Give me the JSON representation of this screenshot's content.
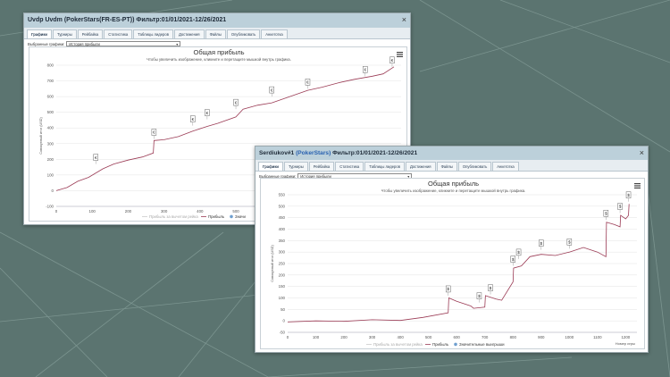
{
  "window1": {
    "title_prefix": "Uvdp Uvdm (PokerStars(FR-ES-PT)) Фильтр:01/01/2021-12/26/2021",
    "close_glyph": "×",
    "tabs": [
      "Графики",
      "Турниры",
      "Рейбайка",
      "Статистика",
      "Таблицы лидеров",
      "Достижения",
      "Файлы",
      "Опубликовать",
      "Анкетотка"
    ],
    "select_label": "Выбранные графики:",
    "select_value": "История прибыли",
    "chart_title": "Общая прибыль",
    "chart_subtitle": "Чтобы увеличить изображение, кликните и перетащите мышкой внутрь графика.",
    "ylabel": "Совокупный итог (USD)",
    "legend": [
      "Прибыль за вычетом рейка",
      "Прибыль",
      "Значи"
    ]
  },
  "window2": {
    "title_name": "Serdiukov#1",
    "title_site": "(PokerStars)",
    "title_filter": "Фильтр:01/01/2021-12/26/2021",
    "close_glyph": "×",
    "tabs": [
      "Графики",
      "Турниры",
      "Рейбайка",
      "Статистика",
      "Таблицы лидеров",
      "Достижения",
      "Файлы",
      "Опубликовать",
      "Анкетотка"
    ],
    "select_label": "Выбранные графики:",
    "select_value": "История прибыли",
    "chart_title": "Общая прибыль",
    "chart_subtitle": "Чтобы увеличить изображение, кликните и перетащите мышкой внутрь графика.",
    "ylabel": "Совокупный итог (USD)",
    "xlabel": "Номер игры",
    "legend": [
      "Прибыль за вычетом рейка",
      "Прибыль",
      "Значительные выигрыши"
    ]
  },
  "colors": {
    "line": "#9b3b55",
    "marker": "#6f9fcf",
    "titlebar": "#bcd0da",
    "background": "#5b7470"
  },
  "icons": {
    "menu": "hamburger-menu-icon",
    "flag1": "€",
    "flag2": "$"
  },
  "chart_data": [
    {
      "type": "line",
      "title": "Общая прибыль",
      "subtitle": "Чтобы увеличить изображение, кликните и перетащите мышкой внутрь графика.",
      "ylabel": "Совокупный итог (USD)",
      "xlabel": "",
      "xticks": [
        0,
        100,
        200,
        300,
        400,
        500
      ],
      "yticks": [
        -100,
        0,
        100,
        200,
        300,
        400,
        500,
        600,
        700,
        800
      ],
      "xlim": [
        0,
        960
      ],
      "ylim": [
        -100,
        800
      ],
      "series": [
        {
          "name": "Прибыль",
          "x": [
            0,
            30,
            60,
            90,
            130,
            160,
            200,
            240,
            270,
            272,
            300,
            340,
            380,
            420,
            450,
            500,
            520,
            560,
            600,
            650,
            700,
            740,
            790,
            830,
            880,
            910,
            940
          ],
          "y": [
            0,
            20,
            60,
            85,
            140,
            170,
            195,
            215,
            240,
            320,
            325,
            345,
            380,
            410,
            430,
            470,
            520,
            545,
            560,
            600,
            640,
            660,
            690,
            710,
            730,
            745,
            790
          ]
        },
        {
          "name": "Прибыль за вычетом рейка",
          "x": [],
          "y": []
        }
      ],
      "markers": {
        "name": "Значительные выигрыши",
        "x": [
          110,
          272,
          380,
          420,
          500,
          600,
          700,
          860,
          935
        ],
        "y": [
          170,
          330,
          415,
          455,
          520,
          600,
          650,
          730,
          790
        ]
      },
      "legend": [
        "Прибыль за вычетом рейка",
        "Прибыль",
        "Значи"
      ]
    },
    {
      "type": "line",
      "title": "Общая прибыль",
      "subtitle": "Чтобы увеличить изображение, кликните и перетащите мышкой внутрь графика.",
      "ylabel": "Совокупный итог (USD)",
      "xlabel": "Номер игры",
      "xticks": [
        0,
        100,
        200,
        300,
        400,
        500,
        600,
        700,
        800,
        900,
        1000,
        1100,
        1200
      ],
      "yticks": [
        -50,
        0,
        50,
        100,
        150,
        200,
        250,
        300,
        350,
        400,
        450,
        500,
        550
      ],
      "xlim": [
        0,
        1240
      ],
      "ylim": [
        -50,
        550
      ],
      "series": [
        {
          "name": "Прибыль",
          "x": [
            0,
            100,
            200,
            300,
            400,
            480,
            570,
            572,
            600,
            650,
            660,
            700,
            702,
            740,
            760,
            800,
            802,
            830,
            860,
            900,
            950,
            1000,
            1050,
            1100,
            1130,
            1132,
            1160,
            1180,
            1182,
            1200,
            1210,
            1212
          ],
          "y": [
            -5,
            0,
            -2,
            5,
            2,
            15,
            35,
            100,
            85,
            65,
            55,
            60,
            110,
            95,
            90,
            170,
            230,
            240,
            280,
            290,
            285,
            300,
            320,
            300,
            280,
            430,
            420,
            410,
            460,
            445,
            460,
            510
          ]
        },
        {
          "name": "Прибыль за вычетом рейка",
          "x": [],
          "y": []
        }
      ],
      "markers": {
        "name": "Значительные выигрыши",
        "x": [
          570,
          680,
          720,
          800,
          820,
          900,
          1000,
          1130,
          1180,
          1210
        ],
        "y": [
          110,
          80,
          115,
          240,
          270,
          310,
          315,
          440,
          470,
          520
        ]
      },
      "legend": [
        "Прибыль за вычетом рейка",
        "Прибыль",
        "Значительные выигрыши"
      ]
    }
  ]
}
